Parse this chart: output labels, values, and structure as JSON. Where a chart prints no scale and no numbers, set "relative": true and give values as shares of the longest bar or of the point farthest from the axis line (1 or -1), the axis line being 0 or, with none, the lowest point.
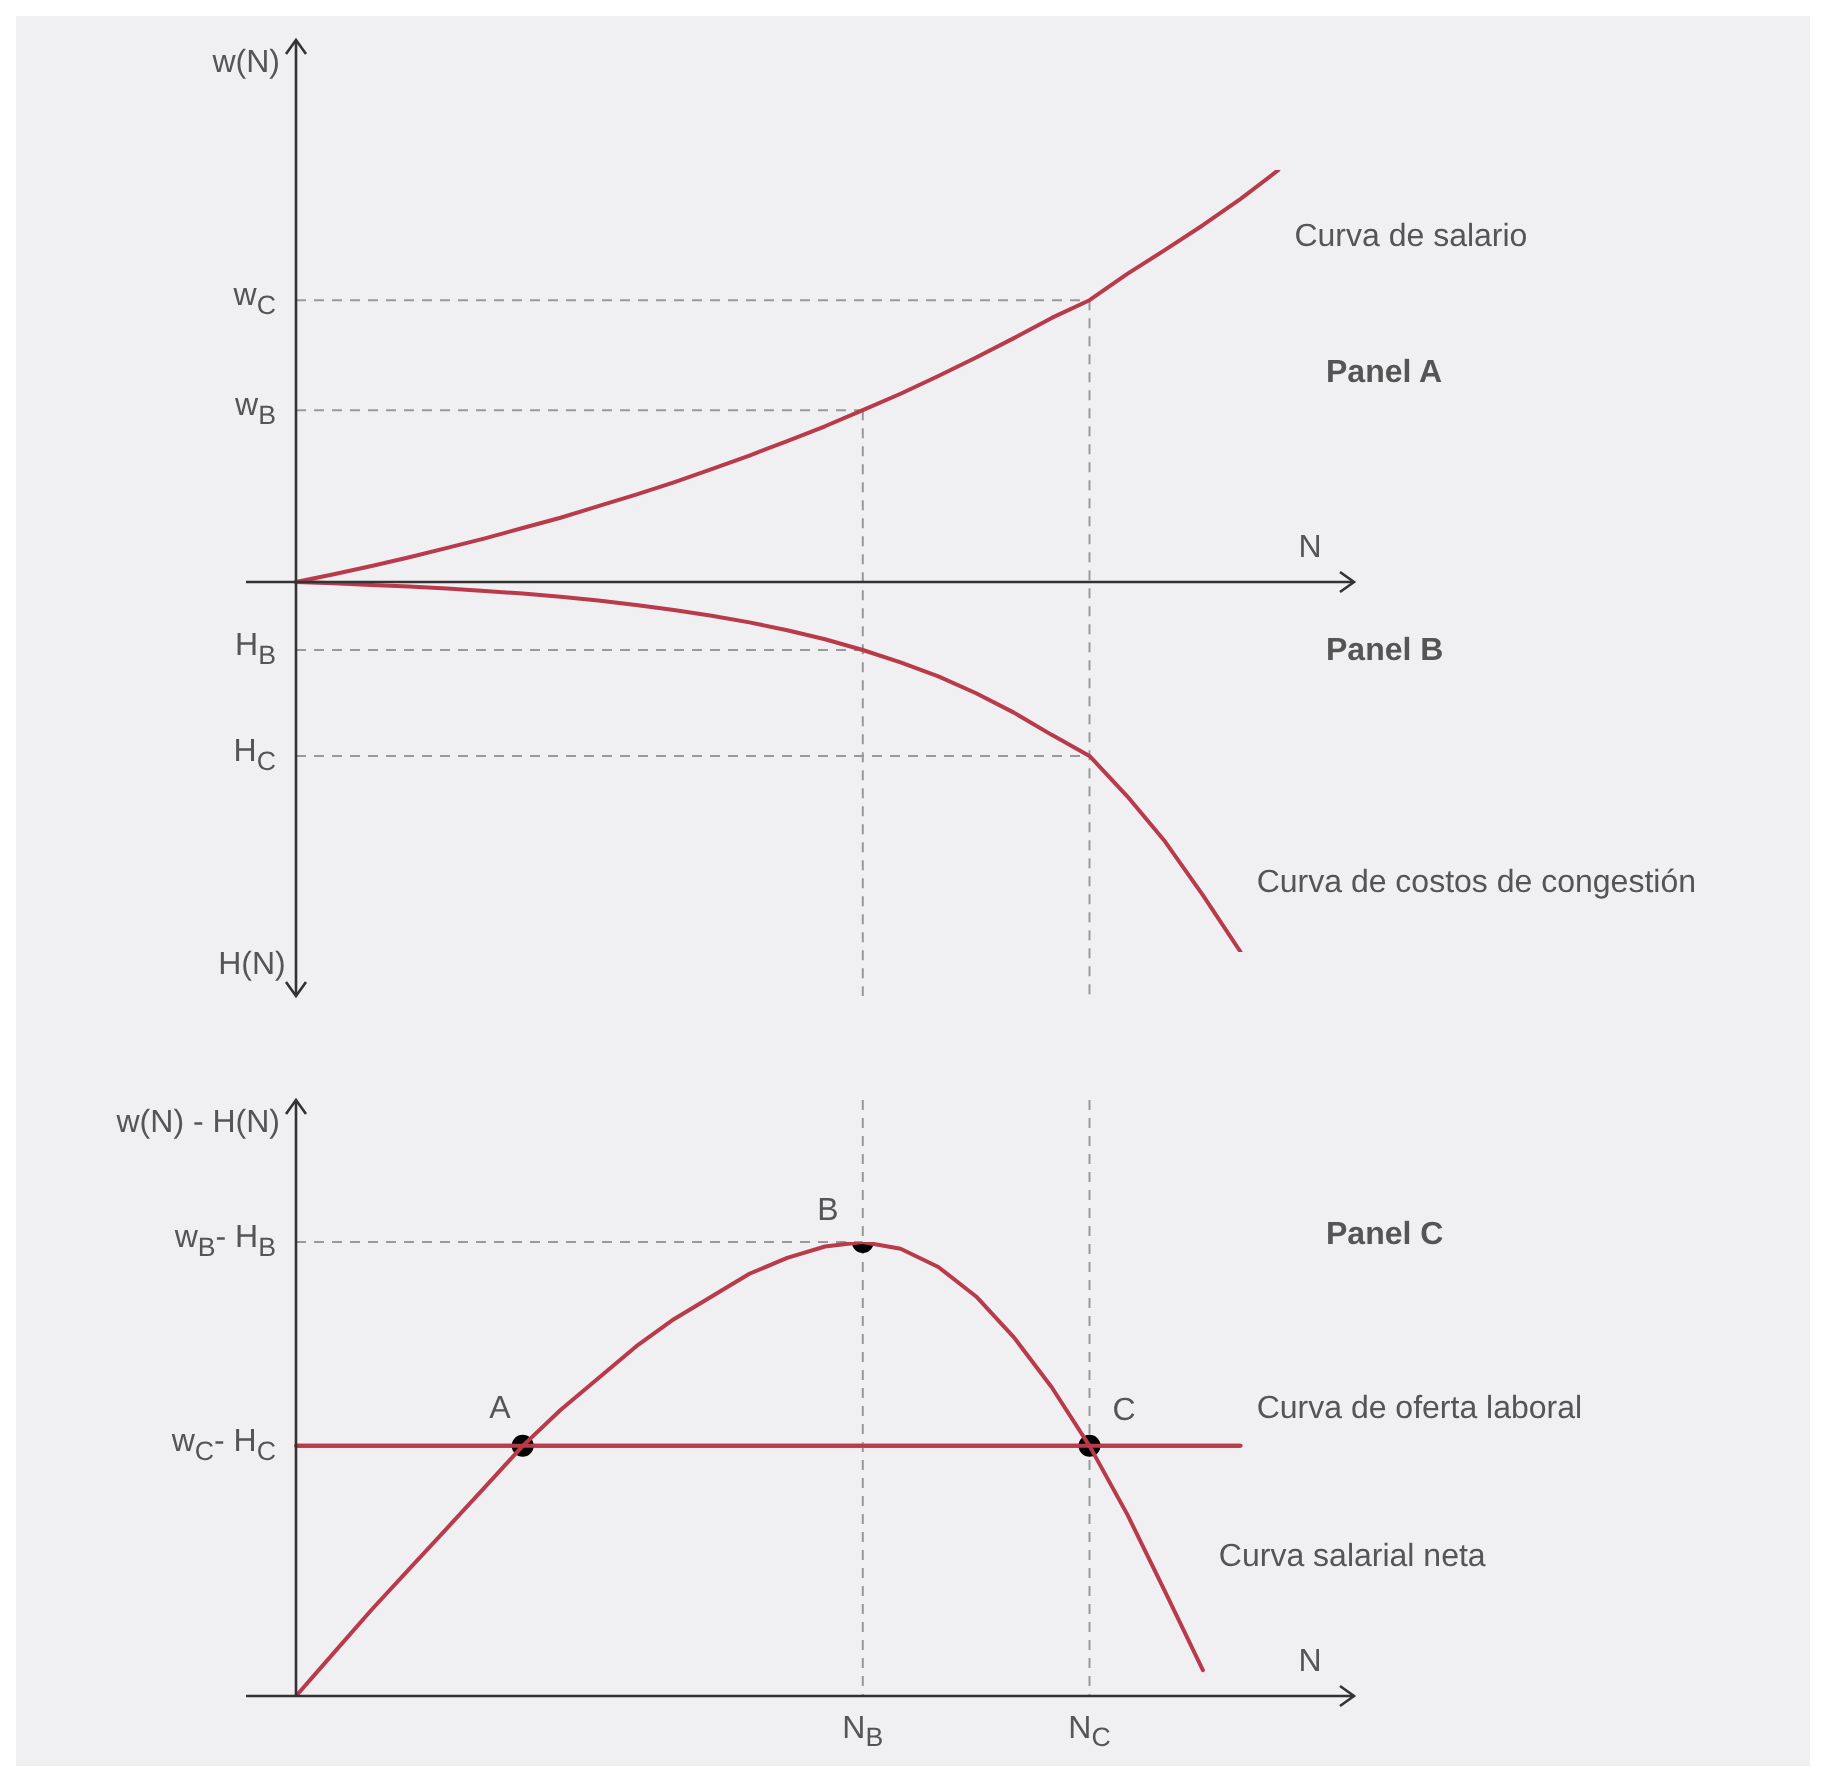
{
  "chart_data": [
    {
      "type": "line",
      "relative": true,
      "xlabel": "N",
      "ylabel": "w(N)",
      "annotations": [
        "Panel A",
        "Panel B",
        "H(N)"
      ],
      "categories": [
        null,
        null,
        null,
        null,
        null,
        null,
        null,
        null,
        null,
        null,
        null,
        null,
        null,
        null,
        null,
        null,
        null,
        null,
        null,
        null,
        null,
        null,
        null,
        null,
        null,
        null,
        null,
        null,
        null
      ],
      "series": [
        {
          "name": "Curva de salario",
          "color": "#b83a4b",
          "values": [
            0,
            0.019,
            0.039,
            0.06,
            0.083,
            0.106,
            0.131,
            0.156,
            0.184,
            0.212,
            0.242,
            0.274,
            0.307,
            0.342,
            0.378,
            0.417,
            0.457,
            0.5,
            0.545,
            0.592,
            0.641,
            0.684,
            0.748,
            0.806,
            0.866,
            0.93,
            1.0,
            null,
            null
          ]
        },
        {
          "name": "Curva de costos de congestión",
          "color": "#b83a4b",
          "values": [
            0,
            -0.003,
            -0.007,
            -0.011,
            -0.016,
            -0.022,
            -0.028,
            -0.036,
            -0.045,
            -0.056,
            -0.068,
            -0.082,
            -0.098,
            -0.117,
            -0.139,
            -0.165,
            -0.195,
            -0.229,
            -0.27,
            -0.317,
            -0.371,
            -0.422,
            -0.52,
            -0.63,
            -0.76,
            -0.898,
            null,
            null,
            null
          ]
        }
      ],
      "ref_lines": [
        {
          "axis": "y",
          "value": 0.684,
          "label": "w$_{C}$",
          "color": "#999999",
          "line_style": "dashed"
        },
        {
          "axis": "y",
          "value": 0.417,
          "label": "w$_{B}$",
          "color": "#999999",
          "line_style": "dashed"
        },
        {
          "axis": "y",
          "value": -0.165,
          "label": "H$_{B}$",
          "color": "#999999",
          "line_style": "dashed"
        },
        {
          "axis": "y",
          "value": -0.422,
          "label": "H$_{C}$",
          "color": "#999999",
          "line_style": "dashed"
        }
      ]
    },
    {
      "type": "line",
      "relative": true,
      "xlabel": "N",
      "ylabel": "w(N) - H(N)",
      "annotations": [
        "Panel C",
        "A",
        "B",
        "C"
      ],
      "categories": [
        null,
        null,
        null,
        null,
        null,
        null,
        null,
        null,
        null,
        null,
        null,
        null,
        null,
        null,
        null,
        "N$_{B}$",
        null,
        null,
        null,
        null,
        null,
        "N$_{C}$",
        null,
        null,
        null,
        null,
        null,
        null,
        null
      ],
      "series": [
        {
          "name": "Curva de oferta laboral",
          "color": "#b83a4b",
          "values": [
            0.551,
            0.551,
            0.551,
            0.551,
            0.551,
            0.551,
            0.551,
            0.551,
            0.551,
            0.551,
            0.551,
            0.551,
            0.551,
            0.551,
            0.551,
            0.551,
            0.551,
            0.551,
            0.551,
            0.551,
            0.551,
            0.551,
            0.551,
            0.551,
            0.551,
            0.551,
            null,
            null,
            null
          ]
        },
        {
          "name": "Curva salarial neta",
          "color": "#b83a4b",
          "values": [
            0,
            0.095,
            0.19,
            0.28,
            0.37,
            0.46,
            0.551,
            0.63,
            0.7,
            0.77,
            0.83,
            0.88,
            0.93,
            0.965,
            0.99,
            1,
            0.985,
            0.945,
            0.88,
            0.79,
            0.68,
            0.551,
            0.4,
            0.23,
            0.057,
            null,
            null,
            null,
            null
          ]
        },
        {
          "type": "scatter",
          "marker": "circle",
          "color": "#000000",
          "values": [
            null,
            null,
            null,
            null,
            null,
            null,
            0.551,
            null,
            null,
            null,
            null,
            null,
            null,
            null,
            null,
            1,
            null,
            null,
            null,
            null,
            null,
            0.551,
            null,
            null,
            null,
            null,
            null,
            null,
            null
          ]
        }
      ],
      "ref_lines": [
        {
          "axis": "y",
          "value": 1,
          "label": "w$_{B}$- H$_{B}$",
          "color": "#999999",
          "line_style": "dashed"
        },
        {
          "axis": "y",
          "value": 0.551,
          "label": "w$_{C}$- H$_{C}$",
          "color": "#b83a4b",
          "line_style": "solid"
        },
        {
          "axis": "x",
          "value": "N$_{B}$",
          "color": "#999999",
          "line_style": "dashed"
        },
        {
          "axis": "x",
          "value": "N$_{C}$",
          "color": "#999999",
          "line_style": "dashed"
        }
      ]
    }
  ]
}
